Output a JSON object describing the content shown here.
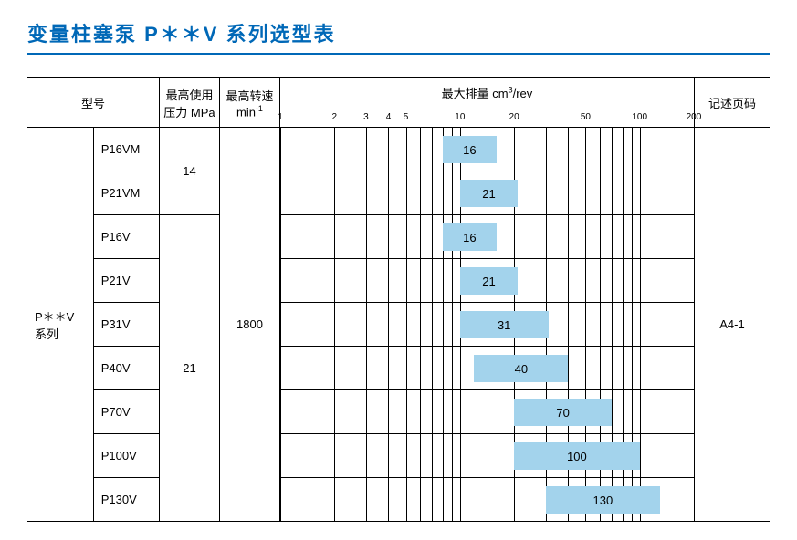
{
  "title": "变量柱塞泵 P＊＊V 系列选型表",
  "headers": {
    "model": "型号",
    "pressure": "最高使用\n压力 MPa",
    "speed": "最高转速\nmin",
    "speed_sup": "-1",
    "displacement": "最大排量 cm",
    "displacement_sup": "3",
    "displacement_tail": "/rev",
    "page": "记述页码"
  },
  "series_label": "P＊＊V\n系列",
  "page_ref": "A4-1",
  "speed_value": "1800",
  "pressure_groups": [
    {
      "value": "14",
      "rowspan": 2
    },
    {
      "value": "21",
      "rowspan": 7
    }
  ],
  "axis": {
    "min_log": 0,
    "max_log": 2.301,
    "ticks": [
      1,
      2,
      3,
      4,
      5,
      10,
      20,
      50,
      100,
      200
    ],
    "grid": [
      1,
      2,
      3,
      4,
      5,
      6,
      7,
      8,
      9,
      10,
      20,
      30,
      40,
      50,
      60,
      70,
      80,
      90,
      100,
      200
    ]
  },
  "rows": [
    {
      "model": "P16VM",
      "from": 8,
      "to": 16,
      "label": "16"
    },
    {
      "model": "P21VM",
      "from": 10,
      "to": 21,
      "label": "21"
    },
    {
      "model": "P16V",
      "from": 8,
      "to": 16,
      "label": "16"
    },
    {
      "model": "P21V",
      "from": 10,
      "to": 21,
      "label": "21"
    },
    {
      "model": "P31V",
      "from": 10,
      "to": 31,
      "label": "31"
    },
    {
      "model": "P40V",
      "from": 12,
      "to": 40,
      "label": "40"
    },
    {
      "model": "P70V",
      "from": 20,
      "to": 70,
      "label": "70"
    },
    {
      "model": "P100V",
      "from": 20,
      "to": 100,
      "label": "100"
    },
    {
      "model": "P130V",
      "from": 30,
      "to": 130,
      "label": "130"
    }
  ],
  "colors": {
    "bar": "#a3d3ec",
    "title": "#0068b7",
    "line": "#000000",
    "bg": "#ffffff"
  }
}
